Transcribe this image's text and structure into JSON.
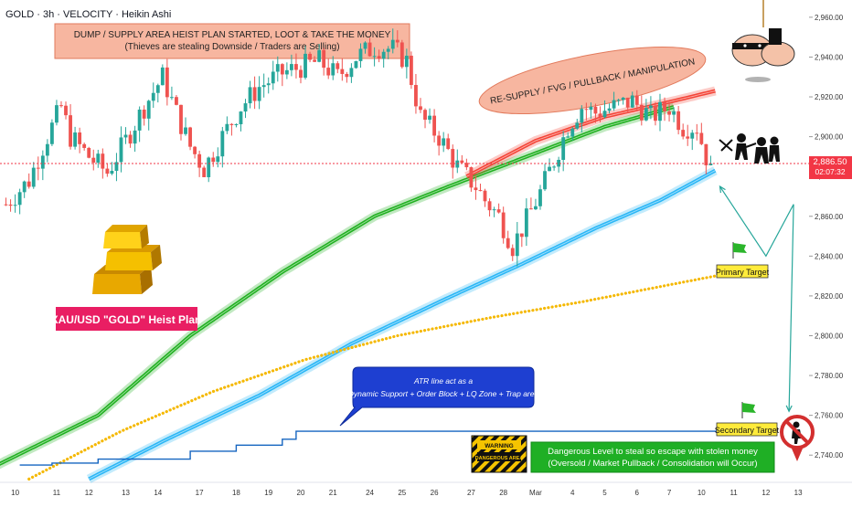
{
  "header": {
    "title": "GOLD · 3h · VELOCITY · Heikin Ashi"
  },
  "price_tag": {
    "price": "2,886.50",
    "countdown": "02:07:32",
    "color": "#f23645"
  },
  "annotations": {
    "supply_box": {
      "line1": "DUMP / SUPPLY AREA HEIST PLAN STARTED, LOOT & TAKE THE MONEY",
      "line2": "(Thieves are stealing Downside / Traders are Selling)"
    },
    "resupply_ellipse": "RE-SUPPLY / FVG / PULLBACK / MANIPULATION",
    "plan_label": "XAU/USD \"GOLD\" Heist Plan",
    "atr_callout": {
      "line1": "ATR line act as a",
      "line2": "Dynamic Support + Order Block + LQ Zone + Trap area"
    },
    "primary_target": "Primary Target",
    "secondary_target": "Secondary Target",
    "warning_sign": {
      "top": "WARNING",
      "bottom": "DANGEROUS AREA"
    },
    "danger_box": {
      "line1": "Dangerous Level to steal so escape with stolen money",
      "line2": "(Oversold / Market Pullback / Consolidation will Occur)"
    }
  },
  "icons": [
    "gold-bars-icon",
    "thief-icon",
    "robbers-icon",
    "flag-icon",
    "no-thief-icon"
  ],
  "colors": {
    "bull": "#26a69a",
    "bear": "#ef5350",
    "green_ma": "#1fb01f",
    "blue_ma": "#29b6f6",
    "red_ma": "#f44336",
    "yellow_ma": "#f5b800",
    "atr": "#1565c0",
    "supply_box": "#f6a98f",
    "plan_label": "#e91e63",
    "danger_box": "#1faf25",
    "target_box": "#ffeb3b"
  },
  "chart_data": {
    "type": "candlestick",
    "symbol": "GOLD",
    "timeframe": "3h",
    "style": "Heikin Ashi",
    "ylim": [
      2730,
      2965
    ],
    "yticks": [
      "2,960.00",
      "2,940.00",
      "2,920.00",
      "2,900.00",
      "2,880.00",
      "2,860.00",
      "2,840.00",
      "2,820.00",
      "2,800.00",
      "2,780.00",
      "2,760.00",
      "2,740.00"
    ],
    "ytick_values": [
      2960,
      2940,
      2920,
      2900,
      2880,
      2860,
      2840,
      2820,
      2800,
      2780,
      2760,
      2740
    ],
    "xticks": [
      "10",
      "11",
      "12",
      "13",
      "14",
      "17",
      "18",
      "19",
      "20",
      "21",
      "24",
      "25",
      "26",
      "27",
      "28",
      "Mar",
      "4",
      "5",
      "6",
      "7",
      "10",
      "11",
      "12",
      "13"
    ],
    "xtick_index": [
      2,
      11,
      18,
      26,
      33,
      42,
      50,
      57,
      64,
      71,
      79,
      86,
      93,
      101,
      108,
      115,
      123,
      130,
      137,
      144,
      151,
      158,
      165,
      172
    ],
    "current_price": 2886.5,
    "close_path": [
      [
        0,
        2866
      ],
      [
        5,
        2878
      ],
      [
        8,
        2895
      ],
      [
        12,
        2915
      ],
      [
        14,
        2900
      ],
      [
        18,
        2890
      ],
      [
        22,
        2882
      ],
      [
        26,
        2898
      ],
      [
        30,
        2915
      ],
      [
        34,
        2930
      ],
      [
        37,
        2912
      ],
      [
        40,
        2895
      ],
      [
        43,
        2884
      ],
      [
        47,
        2900
      ],
      [
        51,
        2915
      ],
      [
        55,
        2925
      ],
      [
        60,
        2932
      ],
      [
        64,
        2935
      ],
      [
        68,
        2938
      ],
      [
        72,
        2930
      ],
      [
        76,
        2940
      ],
      [
        80,
        2945
      ],
      [
        84,
        2944
      ],
      [
        87,
        2938
      ],
      [
        90,
        2910
      ],
      [
        94,
        2900
      ],
      [
        98,
        2885
      ],
      [
        102,
        2875
      ],
      [
        104,
        2868
      ],
      [
        107,
        2860
      ],
      [
        110,
        2845
      ],
      [
        113,
        2858
      ],
      [
        116,
        2872
      ],
      [
        119,
        2888
      ],
      [
        122,
        2905
      ],
      [
        125,
        2915
      ],
      [
        128,
        2912
      ],
      [
        132,
        2915
      ],
      [
        136,
        2918
      ],
      [
        140,
        2910
      ],
      [
        144,
        2915
      ],
      [
        147,
        2905
      ],
      [
        150,
        2905
      ],
      [
        152,
        2890
      ],
      [
        153,
        2886
      ]
    ],
    "series": [
      {
        "name": "",
        "color": "#1fb01f",
        "points": [
          [
            -8,
            2728
          ],
          [
            20,
            2760
          ],
          [
            40,
            2800
          ],
          [
            60,
            2832
          ],
          [
            80,
            2860
          ],
          [
            95,
            2874
          ],
          [
            104,
            2882
          ],
          [
            130,
            2905
          ],
          [
            145,
            2915
          ]
        ]
      },
      {
        "name": "",
        "color": "#f44336",
        "points": [
          [
            100,
            2880
          ],
          [
            115,
            2898
          ],
          [
            130,
            2910
          ],
          [
            145,
            2918
          ],
          [
            154,
            2923
          ]
        ]
      },
      {
        "name": "",
        "color": "#29b6f6",
        "points": [
          [
            18,
            2728
          ],
          [
            35,
            2748
          ],
          [
            55,
            2770
          ],
          [
            75,
            2796
          ],
          [
            95,
            2818
          ],
          [
            112,
            2836
          ],
          [
            128,
            2854
          ],
          [
            142,
            2868
          ],
          [
            154,
            2883
          ]
        ]
      },
      {
        "name": "",
        "color": "#f5b800",
        "points": [
          [
            5,
            2728
          ],
          [
            25,
            2752
          ],
          [
            45,
            2772
          ],
          [
            65,
            2788
          ],
          [
            85,
            2800
          ],
          [
            105,
            2809
          ],
          [
            125,
            2817
          ],
          [
            145,
            2826
          ],
          [
            154,
            2830
          ]
        ]
      }
    ],
    "atr_line": [
      [
        3,
        2735
      ],
      [
        10,
        2735
      ],
      [
        10,
        2736
      ],
      [
        20,
        2736
      ],
      [
        20,
        2738
      ],
      [
        40,
        2738
      ],
      [
        40,
        2742
      ],
      [
        50,
        2742
      ],
      [
        50,
        2745
      ],
      [
        60,
        2745
      ],
      [
        60,
        2748
      ],
      [
        63,
        2748
      ],
      [
        63,
        2752
      ],
      [
        155,
        2752
      ]
    ],
    "projection_path": [
      [
        155,
        2875
      ],
      [
        165,
        2840
      ],
      [
        171,
        2866
      ],
      [
        170,
        2762
      ]
    ],
    "targets": [
      {
        "label": "Primary Target",
        "price": 2838
      },
      {
        "label": "Secondary Target",
        "price": 2752
      }
    ],
    "legend": "none",
    "grid": false
  }
}
